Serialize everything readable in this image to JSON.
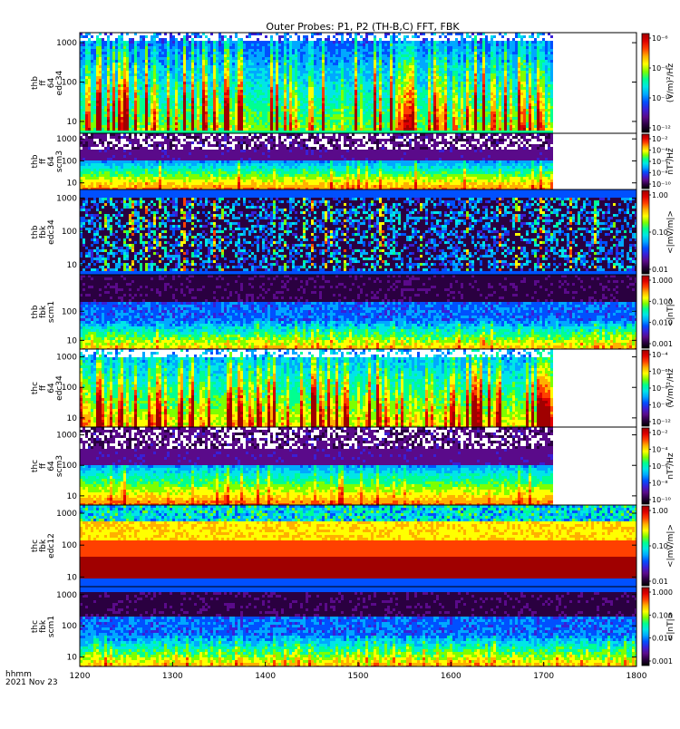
{
  "chart_data": {
    "type": "heatmap",
    "title": "Outer Probes: P1, P2 (TH-B,C) FFT, FBK",
    "x": {
      "range": [
        1200,
        1800
      ],
      "ticks": [
        1200,
        1300,
        1400,
        1500,
        1600,
        1700,
        1800
      ],
      "label_time_unit": "hhmm",
      "label_date": "2021 Nov 23"
    },
    "colors": {
      "ramp": [
        "#000000",
        "#2a0040",
        "#5a0a8a",
        "#3a1fd6",
        "#0050ff",
        "#00a8ff",
        "#00e6e6",
        "#00ff90",
        "#7dff00",
        "#ffff00",
        "#ffb000",
        "#ff4000",
        "#e00000",
        "#a00000"
      ]
    },
    "panels": [
      {
        "ylabel": [
          "thb",
          "ff",
          "64",
          "edc34"
        ],
        "yticks": [
          10,
          100,
          1000
        ],
        "data_end": 1710,
        "fill": "dense_spiky",
        "base": 0.28,
        "spike": 0.55,
        "top_layer": "none",
        "bottom_line": 0.55,
        "cbar": {
          "label": "(V/m)²/Hz",
          "ticks": [
            "10⁻⁶",
            "10⁻⁸",
            "10⁻¹⁰",
            "10⁻¹²"
          ]
        }
      },
      {
        "ylabel": [
          "thb",
          "ff",
          "64",
          "scm3"
        ],
        "yticks": [
          10,
          100,
          1000
        ],
        "data_end": 1710,
        "fill": "banded",
        "base": 0.55,
        "spike": 0.2,
        "top_layer": "white_noise",
        "cbar": {
          "label": "nT²/Hz",
          "ticks": [
            "10⁻²",
            "10⁻⁴",
            "10⁻⁶",
            "10⁻⁸",
            "10⁻¹⁰"
          ]
        }
      },
      {
        "ylabel": [
          "thb",
          "fbk",
          "edc34"
        ],
        "yticks": [
          10,
          100,
          1000
        ],
        "data_end": 1800,
        "fill": "blocky",
        "base": 0.25,
        "spike": 0.3,
        "top_layer": "blue_top",
        "cbar": {
          "label": "<|mV/m|>",
          "ticks": [
            "1.00",
            "0.10",
            "0.01"
          ]
        }
      },
      {
        "ylabel": [
          "thb",
          "fbk",
          "scm1"
        ],
        "yticks": [
          10,
          100
        ],
        "data_end": 1800,
        "fill": "fbk_scm",
        "base": 0.3,
        "spike": 0.3,
        "top_layer": "none",
        "cbar": {
          "label": "<|nT|>",
          "ticks": [
            "1.000",
            "0.100",
            "0.010",
            "0.001"
          ]
        }
      },
      {
        "ylabel": [
          "thc",
          "ff",
          "64",
          "edc34"
        ],
        "yticks": [
          10,
          100,
          1000
        ],
        "data_end": 1710,
        "fill": "dense_spiky",
        "base": 0.35,
        "spike": 0.62,
        "top_layer": "none",
        "cbar": {
          "label": "(V/m)²/Hz",
          "ticks": [
            "10⁻⁴",
            "10⁻⁶",
            "10⁻⁸",
            "10⁻¹⁰",
            "10⁻¹²"
          ]
        }
      },
      {
        "ylabel": [
          "thc",
          "ff",
          "64",
          "scm3"
        ],
        "yticks": [
          10,
          100,
          1000
        ],
        "data_end": 1710,
        "fill": "banded",
        "base": 0.55,
        "spike": 0.2,
        "top_layer": "white_noise",
        "cbar": {
          "label": "nT²/Hz",
          "ticks": [
            "10⁻²",
            "10⁻⁴",
            "10⁻⁶",
            "10⁻⁸",
            "10⁻¹⁰"
          ]
        }
      },
      {
        "ylabel": [
          "thc",
          "fbk",
          "edc12"
        ],
        "yticks": [
          10,
          100,
          1000
        ],
        "data_end": 1800,
        "fill": "edc12",
        "base": 0.5,
        "spike": 0.2,
        "top_layer": "none",
        "cbar": {
          "label": "<|mV/m|>",
          "ticks": [
            "1.00",
            "0.10",
            "0.01"
          ]
        }
      },
      {
        "ylabel": [
          "thc",
          "fbk",
          "scm1"
        ],
        "yticks": [
          10,
          100,
          1000
        ],
        "data_end": 1800,
        "fill": "fbk_scm",
        "base": 0.3,
        "spike": 0.3,
        "top_layer": "blue_top",
        "cbar": {
          "label": "<|nT|>",
          "ticks": [
            "1.000",
            "0.100",
            "0.010",
            "0.001"
          ]
        }
      }
    ]
  }
}
